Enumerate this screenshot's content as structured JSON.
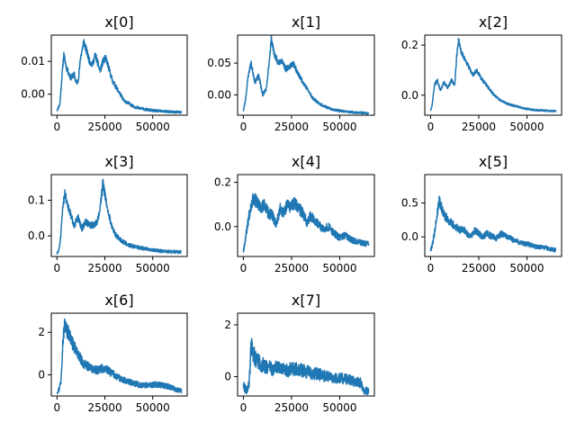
{
  "chart_data": [
    {
      "type": "line",
      "title": "x[0]",
      "xlim": [
        -3000,
        68000
      ],
      "ylim": [
        -0.0064,
        0.018
      ],
      "xticks": [
        0,
        25000,
        50000
      ],
      "xtick_labels": [
        "0",
        "25000",
        "50000"
      ],
      "yticks": [
        0.0,
        0.01
      ],
      "ytick_labels": [
        "0.00",
        "0.01"
      ],
      "color": "#1f77b4",
      "noise": 0.0009,
      "seed": 11,
      "x": [
        0,
        1500,
        2500,
        3500,
        5000,
        7000,
        9000,
        10000,
        11000,
        12500,
        14000,
        15500,
        17000,
        18500,
        20000,
        21000,
        22500,
        24000,
        25500,
        27000,
        29000,
        31000,
        33000,
        35000,
        38000,
        41000,
        45000,
        50000,
        55000,
        60000,
        65000
      ],
      "y": [
        -0.005,
        -0.003,
        0.005,
        0.012,
        0.008,
        0.005,
        0.006,
        0.0035,
        0.004,
        0.012,
        0.016,
        0.013,
        0.01,
        0.009,
        0.012,
        0.01,
        0.007,
        0.01,
        0.011,
        0.008,
        0.004,
        0.002,
        0.0,
        -0.002,
        -0.003,
        -0.004,
        -0.0045,
        -0.005,
        -0.0052,
        -0.0054,
        -0.0055
      ]
    },
    {
      "type": "line",
      "title": "x[1]",
      "xlim": [
        -3000,
        68000
      ],
      "ylim": [
        -0.032,
        0.094
      ],
      "xticks": [
        0,
        25000,
        50000
      ],
      "xtick_labels": [
        "0",
        "25000",
        "50000"
      ],
      "yticks": [
        0.0,
        0.05
      ],
      "ytick_labels": [
        "0.00",
        "0.05"
      ],
      "color": "#1f77b4",
      "noise": 0.004,
      "seed": 23,
      "x": [
        0,
        1000,
        2500,
        4000,
        6000,
        8000,
        10000,
        12000,
        13000,
        14500,
        16000,
        18000,
        20000,
        22000,
        24000,
        26000,
        28000,
        30000,
        33000,
        36000,
        40000,
        45000,
        50000,
        55000,
        60000,
        65000
      ],
      "y": [
        -0.025,
        -0.01,
        0.03,
        0.05,
        0.02,
        0.03,
        0.0,
        0.01,
        0.04,
        0.088,
        0.065,
        0.05,
        0.055,
        0.04,
        0.045,
        0.05,
        0.035,
        0.025,
        0.01,
        -0.005,
        -0.015,
        -0.022,
        -0.025,
        -0.027,
        -0.028,
        -0.029
      ]
    },
    {
      "type": "line",
      "title": "x[2]",
      "xlim": [
        -3000,
        68000
      ],
      "ylim": [
        -0.08,
        0.24
      ],
      "xticks": [
        0,
        25000,
        50000
      ],
      "xtick_labels": [
        "0",
        "25000",
        "50000"
      ],
      "yticks": [
        0.0,
        0.2
      ],
      "ytick_labels": [
        "0.0",
        "0.2"
      ],
      "color": "#1f77b4",
      "noise": 0.008,
      "seed": 37,
      "x": [
        0,
        800,
        2000,
        3500,
        5000,
        7000,
        9000,
        11000,
        12500,
        13500,
        14500,
        16000,
        18000,
        20000,
        22000,
        24000,
        26000,
        28000,
        30000,
        33000,
        36000,
        40000,
        45000,
        50000,
        55000,
        60000,
        65000
      ],
      "y": [
        -0.06,
        -0.04,
        0.04,
        0.06,
        0.02,
        0.05,
        0.03,
        0.06,
        0.04,
        0.15,
        0.22,
        0.17,
        0.14,
        0.11,
        0.08,
        0.1,
        0.07,
        0.05,
        0.03,
        0.0,
        -0.02,
        -0.035,
        -0.045,
        -0.055,
        -0.06,
        -0.062,
        -0.064
      ]
    },
    {
      "type": "line",
      "title": "x[3]",
      "xlim": [
        -3000,
        68000
      ],
      "ylim": [
        -0.058,
        0.172
      ],
      "xticks": [
        0,
        25000,
        50000
      ],
      "xtick_labels": [
        "0",
        "25000",
        "50000"
      ],
      "yticks": [
        0.0,
        0.1
      ],
      "ytick_labels": [
        "0.0",
        "0.1"
      ],
      "color": "#1f77b4",
      "noise": 0.011,
      "seed": 51,
      "x": [
        0,
        1000,
        2000,
        3000,
        4000,
        5500,
        7000,
        9000,
        11000,
        13000,
        15000,
        17000,
        19000,
        21000,
        22500,
        24000,
        25500,
        27000,
        29000,
        31000,
        34000,
        37000,
        40000,
        45000,
        50000,
        55000,
        60000,
        65000
      ],
      "y": [
        -0.05,
        -0.04,
        0.0,
        0.08,
        0.12,
        0.09,
        0.06,
        0.03,
        0.05,
        0.02,
        0.04,
        0.03,
        0.03,
        0.04,
        0.08,
        0.15,
        0.1,
        0.06,
        0.02,
        0.0,
        -0.015,
        -0.025,
        -0.03,
        -0.035,
        -0.04,
        -0.043,
        -0.045,
        -0.046
      ]
    },
    {
      "type": "line",
      "title": "x[4]",
      "xlim": [
        -3000,
        68000
      ],
      "ylim": [
        -0.135,
        0.235
      ],
      "xticks": [
        0,
        25000,
        50000
      ],
      "xtick_labels": [
        "0",
        "25000",
        "50000"
      ],
      "yticks": [
        0.0,
        0.2
      ],
      "ytick_labels": [
        "0.0",
        "0.2"
      ],
      "color": "#1f77b4",
      "noise": 0.03,
      "seed": 67,
      "x": [
        0,
        1000,
        2000,
        3500,
        5000,
        7000,
        9000,
        11000,
        13000,
        15000,
        17000,
        19000,
        21000,
        23000,
        25000,
        27000,
        29000,
        31000,
        33000,
        35000,
        38000,
        41000,
        44000,
        47000,
        50000,
        53000,
        56000,
        60000,
        65000
      ],
      "y": [
        -0.11,
        -0.06,
        0.0,
        0.08,
        0.13,
        0.11,
        0.08,
        0.1,
        0.06,
        0.05,
        0.01,
        0.08,
        0.06,
        0.1,
        0.09,
        0.11,
        0.08,
        0.06,
        0.02,
        0.05,
        0.02,
        -0.01,
        0.0,
        -0.03,
        -0.05,
        -0.04,
        -0.06,
        -0.07,
        -0.08
      ]
    },
    {
      "type": "line",
      "title": "x[5]",
      "xlim": [
        -3000,
        68000
      ],
      "ylim": [
        -0.29,
        0.92
      ],
      "xticks": [
        0,
        25000,
        50000
      ],
      "xtick_labels": [
        "0",
        "25000",
        "50000"
      ],
      "yticks": [
        0.0,
        0.5
      ],
      "ytick_labels": [
        "0.0",
        "0.5"
      ],
      "color": "#1f77b4",
      "noise": 0.075,
      "seed": 79,
      "x": [
        0,
        1000,
        2000,
        3000,
        4500,
        6000,
        7500,
        9000,
        11000,
        13000,
        15000,
        17000,
        19000,
        21000,
        23000,
        25000,
        27000,
        29000,
        31000,
        34000,
        37000,
        40000,
        43000,
        46000,
        49000,
        52000,
        55000,
        58000,
        61000,
        65000
      ],
      "y": [
        -0.2,
        -0.1,
        0.05,
        0.25,
        0.55,
        0.4,
        0.3,
        0.25,
        0.2,
        0.15,
        0.1,
        0.12,
        0.05,
        0.0,
        0.1,
        0.05,
        0.0,
        0.05,
        0.02,
        -0.02,
        0.05,
        0.0,
        -0.05,
        -0.08,
        -0.1,
        -0.12,
        -0.15,
        -0.15,
        -0.17,
        -0.2
      ]
    },
    {
      "type": "line",
      "title": "x[6]",
      "xlim": [
        -3000,
        68000
      ],
      "ylim": [
        -1.0,
        2.9
      ],
      "xticks": [
        0,
        25000,
        50000
      ],
      "xtick_labels": [
        "0",
        "25000",
        "50000"
      ],
      "yticks": [
        0,
        2
      ],
      "ytick_labels": [
        "0",
        "2"
      ],
      "color": "#1f77b4",
      "noise": 0.28,
      "seed": 97,
      "x": [
        0,
        1000,
        2000,
        3000,
        4000,
        5000,
        6500,
        8000,
        10000,
        12000,
        14000,
        16000,
        18000,
        20000,
        22000,
        24000,
        26000,
        28000,
        30000,
        33000,
        36000,
        40000,
        44000,
        48000,
        52000,
        55000,
        58000,
        60000,
        62000,
        65000
      ],
      "y": [
        -0.8,
        -0.7,
        -0.3,
        1.5,
        2.4,
        2.1,
        1.9,
        1.5,
        1.1,
        0.8,
        0.5,
        0.4,
        0.3,
        0.2,
        0.25,
        0.3,
        0.25,
        0.1,
        0.0,
        -0.2,
        -0.3,
        -0.4,
        -0.5,
        -0.5,
        -0.45,
        -0.5,
        -0.55,
        -0.6,
        -0.7,
        -0.75
      ]
    },
    {
      "type": "line",
      "title": "x[7]",
      "xlim": [
        -3000,
        68000
      ],
      "ylim": [
        -0.75,
        2.45
      ],
      "xticks": [
        0,
        25000,
        50000
      ],
      "xtick_labels": [
        "0",
        "25000",
        "50000"
      ],
      "yticks": [
        0,
        2
      ],
      "ytick_labels": [
        "0",
        "2"
      ],
      "color": "#1f77b4",
      "noise": 0.38,
      "seed": 113,
      "x": [
        0,
        1000,
        2000,
        3000,
        4000,
        5000,
        7000,
        9000,
        11000,
        13000,
        15000,
        17000,
        20000,
        23000,
        26000,
        29000,
        32000,
        35000,
        38000,
        41000,
        44000,
        47000,
        50000,
        53000,
        56000,
        59000,
        61000,
        62000,
        63000,
        65000
      ],
      "y": [
        -0.3,
        -0.5,
        -0.5,
        -0.3,
        1.2,
        0.9,
        0.6,
        0.5,
        0.4,
        0.35,
        0.3,
        0.35,
        0.3,
        0.25,
        0.3,
        0.25,
        0.2,
        0.15,
        0.1,
        0.05,
        0.0,
        -0.05,
        -0.05,
        -0.1,
        -0.15,
        -0.2,
        -0.25,
        -0.5,
        -0.55,
        -0.55
      ]
    }
  ]
}
